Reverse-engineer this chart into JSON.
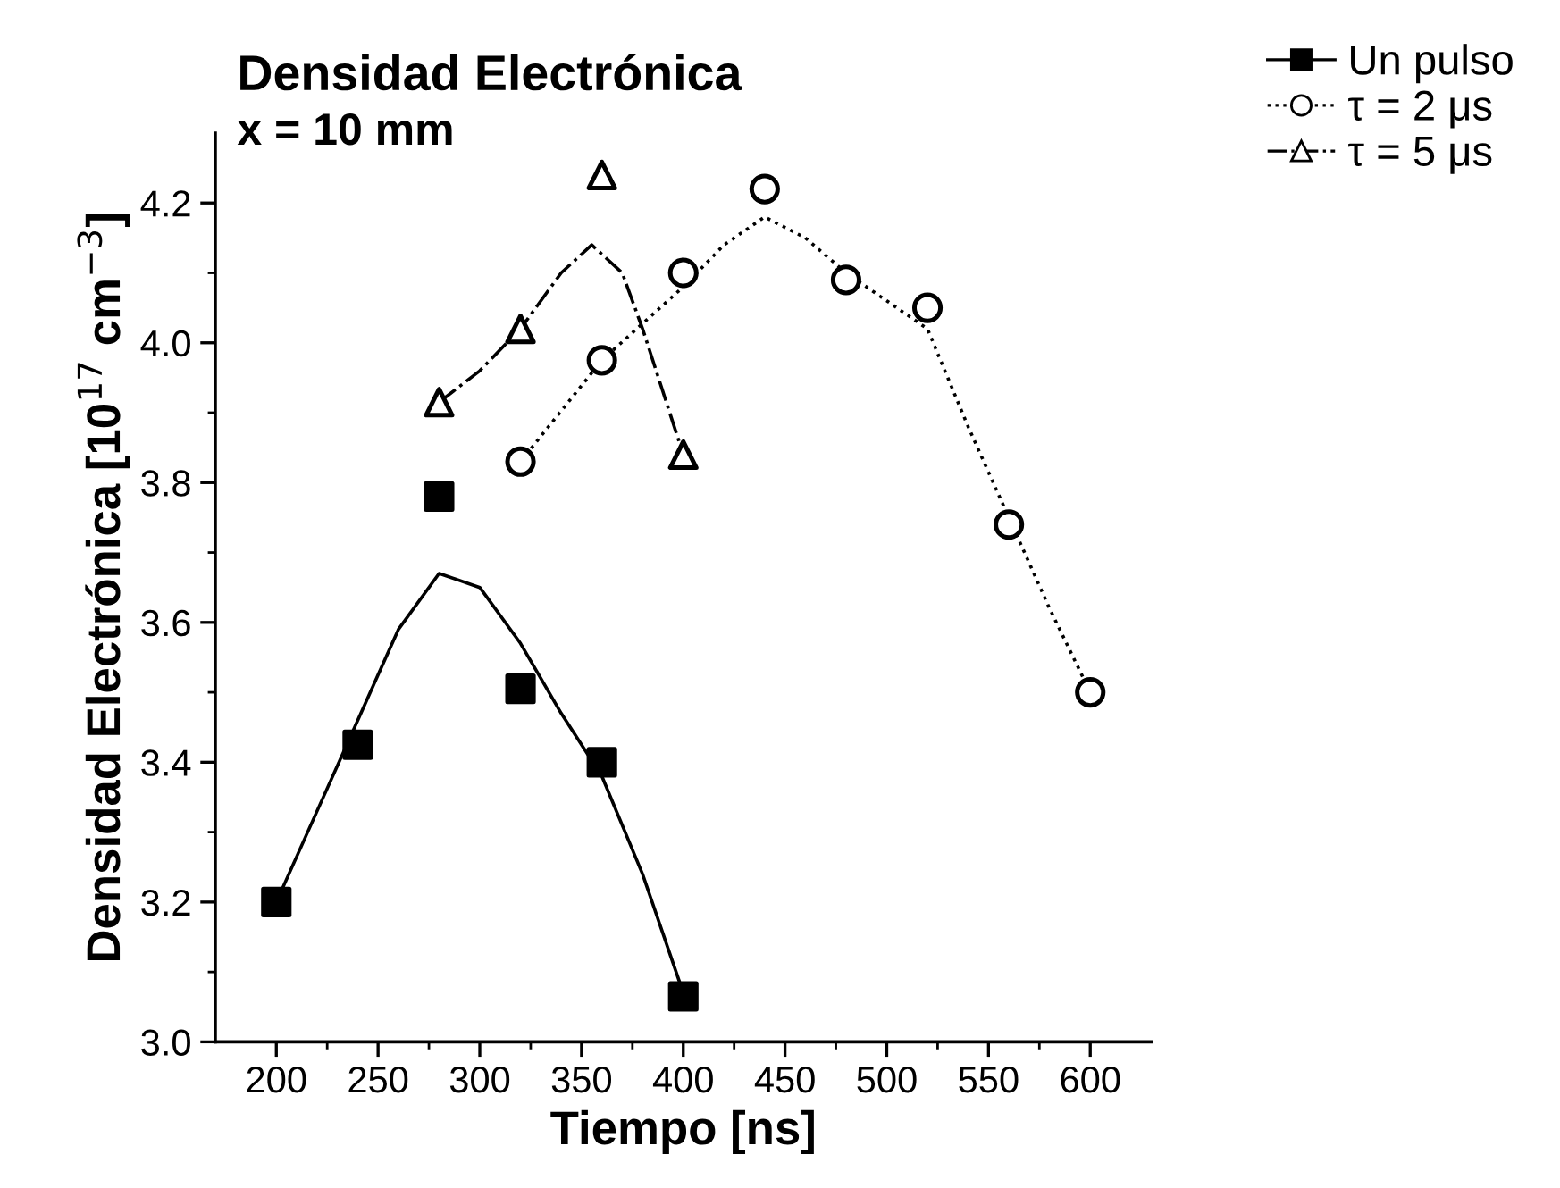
{
  "chart_data": {
    "type": "scatter",
    "title": "Densidad Electrónica",
    "subtitle": "x = 10 mm",
    "xlabel": "Tiempo [ns]",
    "ylabel": "Densidad Electrónica [10$^{17}$ cm$^{−3}$]",
    "xlim": [
      170,
      630
    ],
    "ylim": [
      3.0,
      4.3
    ],
    "xticks": [
      200,
      {
        "value": 225,
        "label": null
      },
      250,
      {
        "value": 275,
        "label": null
      },
      300,
      {
        "value": 325,
        "label": null
      },
      350,
      {
        "value": 375,
        "label": null
      },
      400,
      {
        "value": 425,
        "label": null
      },
      450,
      {
        "value": 475,
        "label": null
      },
      500,
      {
        "value": 525,
        "label": null
      },
      550,
      {
        "value": 575,
        "label": null
      },
      600
    ],
    "yticks": [
      {
        "value": 3.0,
        "label": "3.0"
      },
      {
        "value": 3.1,
        "label": null
      },
      {
        "value": 3.2,
        "label": "3.2"
      },
      {
        "value": 3.3,
        "label": null
      },
      {
        "value": 3.4,
        "label": "3.4"
      },
      {
        "value": 3.5,
        "label": null
      },
      {
        "value": 3.6,
        "label": "3.6"
      },
      {
        "value": 3.7,
        "label": null
      },
      {
        "value": 3.8,
        "label": "3.8"
      },
      {
        "value": 3.9,
        "label": null
      },
      {
        "value": 4.0,
        "label": "4.0"
      },
      {
        "value": 4.1,
        "label": null
      },
      {
        "value": 4.2,
        "label": "4.2"
      }
    ],
    "grid": false,
    "legend": "top right",
    "series": [
      {
        "name": "Un pulso",
        "marker": "square",
        "color": "#000000",
        "x": [
          200,
          240,
          280,
          320,
          360,
          400
        ],
        "values": [
          3.2,
          3.425,
          3.78,
          3.505,
          3.4,
          3.065
        ]
      },
      {
        "type": "line",
        "line_style": "solid",
        "color": "#000000",
        "x": [
          200,
          220,
          240,
          260,
          280,
          300,
          320,
          340,
          360,
          380,
          400
        ],
        "values": [
          3.2,
          3.33,
          3.46,
          3.59,
          3.67,
          3.65,
          3.57,
          3.47,
          3.38,
          3.24,
          3.07
        ]
      },
      {
        "name": "τ = 2 μs",
        "marker": "circle",
        "color": "#000000",
        "x": [
          320,
          360,
          400,
          440,
          480,
          520,
          560,
          600
        ],
        "values": [
          3.83,
          3.975,
          4.1,
          4.22,
          4.09,
          4.05,
          3.74,
          3.5
        ]
      },
      {
        "type": "line",
        "line_style": "dotted",
        "color": "#000000",
        "x": [
          320,
          360,
          400,
          420,
          440,
          460,
          480,
          520,
          540,
          560,
          580,
          600
        ],
        "values": [
          3.83,
          3.975,
          4.08,
          4.14,
          4.18,
          4.15,
          4.1,
          4.02,
          3.88,
          3.75,
          3.62,
          3.5
        ]
      },
      {
        "name": "τ = 5 μs",
        "marker": "triangle",
        "color": "#000000",
        "x": [
          280,
          320,
          360,
          400
        ],
        "values": [
          3.915,
          4.02,
          4.24,
          3.84
        ]
      },
      {
        "type": "line",
        "line_style": "dashdot",
        "color": "#000000",
        "x": [
          280,
          300,
          320,
          340,
          355,
          370,
          380,
          390,
          400
        ],
        "values": [
          3.915,
          3.96,
          4.02,
          4.1,
          4.14,
          4.1,
          4.02,
          3.93,
          3.84
        ]
      }
    ]
  }
}
